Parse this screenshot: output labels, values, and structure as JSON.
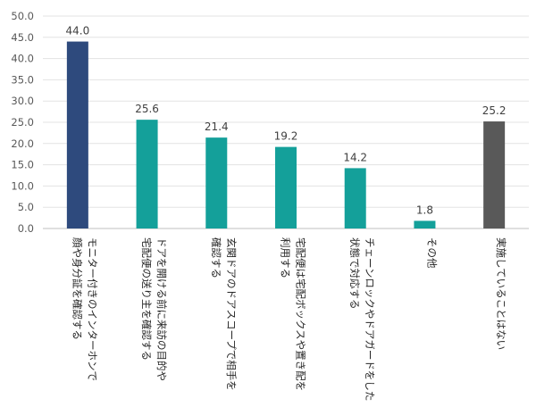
{
  "chart_data": {
    "type": "bar",
    "title": "",
    "xlabel": "",
    "ylabel": "",
    "ylim": [
      0,
      50
    ],
    "yticks": [
      "0.0",
      "5.0",
      "10.0",
      "15.0",
      "20.0",
      "25.0",
      "30.0",
      "35.0",
      "40.0",
      "45.0",
      "50.0"
    ],
    "grid": true,
    "categories": [
      [
        "モニター付きのインターホンで",
        "顔や身分証を確認する"
      ],
      [
        "ドアを開ける前に来訪の目的や",
        "宅配便の送り主を確認する"
      ],
      [
        "玄関ドアのドアスコープで相手を",
        "確認する"
      ],
      [
        "宅配便は宅配ボックスや置き配を",
        "利用する"
      ],
      [
        "チェーンロックやドアガードをした",
        "状態で対応する"
      ],
      [
        "その他"
      ],
      [
        "実施していることはない"
      ]
    ],
    "values": [
      44.0,
      25.6,
      21.4,
      19.2,
      14.2,
      1.8,
      25.2
    ],
    "value_labels": [
      "44.0",
      "25.6",
      "21.4",
      "19.2",
      "14.2",
      "1.8",
      "25.2"
    ],
    "colors": {
      "highlight": "#2E4A7D",
      "default": "#14A09A",
      "none": "#595959",
      "bars": [
        "#2E4A7D",
        "#14A09A",
        "#14A09A",
        "#14A09A",
        "#14A09A",
        "#14A09A",
        "#595959"
      ]
    }
  }
}
